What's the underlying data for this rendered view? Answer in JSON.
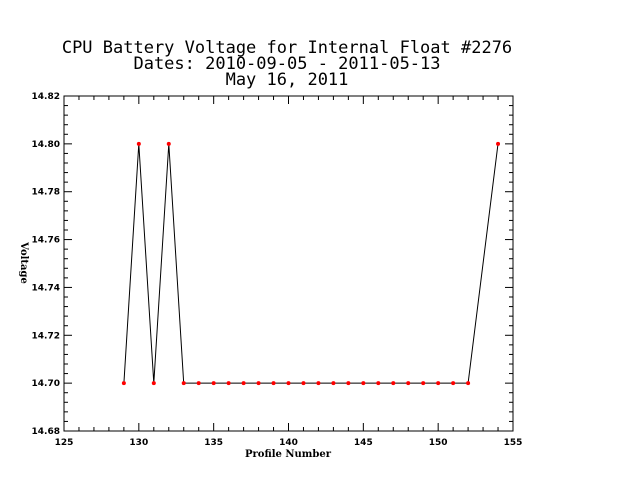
{
  "chart_data": {
    "type": "line",
    "title_lines": [
      "CPU Battery Voltage for Internal Float #2276",
      "Dates:  2010-09-05 -  2011-05-13",
      "May 16, 2011"
    ],
    "xlabel": "Profile Number",
    "ylabel": "Voltage",
    "xlim": [
      125,
      155
    ],
    "ylim": [
      14.68,
      14.82
    ],
    "x_ticks": [
      125,
      130,
      135,
      140,
      145,
      150,
      155
    ],
    "y_ticks": [
      14.68,
      14.7,
      14.72,
      14.74,
      14.76,
      14.78,
      14.8,
      14.82
    ],
    "x_tick_labels": [
      "125",
      "130",
      "135",
      "140",
      "145",
      "150",
      "155"
    ],
    "y_tick_labels": [
      "14.68",
      "14.70",
      "14.72",
      "14.74",
      "14.76",
      "14.78",
      "14.80",
      "14.82"
    ],
    "grid": false,
    "line_color": "#000000",
    "marker_color": "#ff0000",
    "x": [
      129,
      130,
      131,
      132,
      133,
      134,
      135,
      136,
      137,
      138,
      139,
      140,
      141,
      142,
      143,
      144,
      145,
      146,
      147,
      148,
      149,
      150,
      151,
      152,
      154
    ],
    "y": [
      14.7,
      14.8,
      14.7,
      14.8,
      14.7,
      14.7,
      14.7,
      14.7,
      14.7,
      14.7,
      14.7,
      14.7,
      14.7,
      14.7,
      14.7,
      14.7,
      14.7,
      14.7,
      14.7,
      14.7,
      14.7,
      14.7,
      14.7,
      14.7,
      14.8
    ]
  }
}
